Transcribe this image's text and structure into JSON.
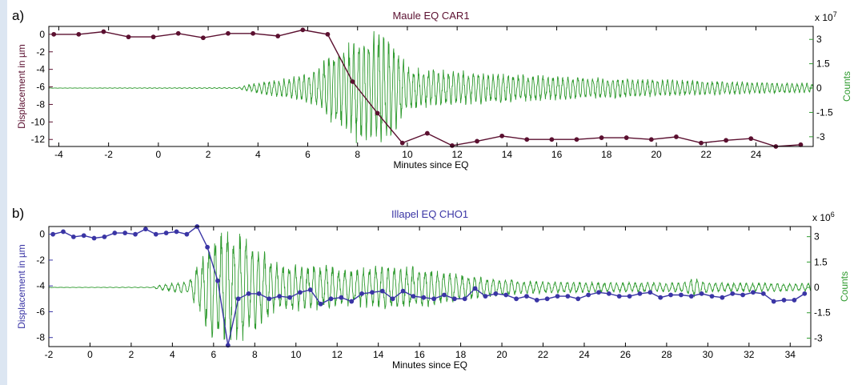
{
  "panels": [
    {
      "label": "a)",
      "chart_data": {
        "type": "line",
        "title": "Maule EQ CAR1",
        "xlabel": "Minutes since EQ",
        "ylabel": "Displacement in µm",
        "y2label": "Counts",
        "y2_exponent_label": "x 10",
        "y2_exponent": "7",
        "xlim": [
          -4.4,
          26.3
        ],
        "ylim": [
          -12.8,
          0.9
        ],
        "y2lim": [
          -3.6,
          3.8
        ],
        "xticks": [
          -4,
          -2,
          0,
          2,
          4,
          6,
          8,
          10,
          12,
          14,
          16,
          18,
          20,
          22,
          24
        ],
        "yticks": [
          0,
          -2,
          -4,
          -6,
          -8,
          -10,
          -12
        ],
        "y2ticks": [
          3,
          1.5,
          0,
          -1.5,
          -3
        ],
        "colors": {
          "displacement": "#5b1030",
          "seismogram": "#2e9a2e"
        },
        "series": [
          {
            "kind": "displacement",
            "x": [
              -4.2,
              -3.2,
              -2.2,
              -1.2,
              -0.2,
              0.8,
              1.8,
              2.8,
              3.8,
              4.8,
              5.8,
              6.8,
              7.8,
              8.8,
              9.8,
              10.8,
              11.8,
              12.8,
              13.8,
              14.8,
              15.8,
              16.8,
              17.8,
              18.8,
              19.8,
              20.8,
              21.8,
              22.8,
              23.8,
              24.8,
              25.8
            ],
            "y": [
              0.0,
              0.0,
              0.3,
              -0.3,
              -0.3,
              0.1,
              -0.4,
              0.1,
              0.1,
              -0.2,
              0.5,
              0.0,
              -5.4,
              -9.0,
              -12.4,
              -11.3,
              -12.7,
              -12.2,
              -11.6,
              -12.0,
              -12.0,
              -12.0,
              -11.8,
              -11.8,
              -12.0,
              -11.7,
              -12.4,
              -12.1,
              -11.9,
              -12.8,
              -12.6
            ]
          },
          {
            "kind": "seismogram",
            "envelope": {
              "t": [
                -4.4,
                3.2,
                3.8,
                5.0,
                6.4,
                6.9,
                7.6,
                8.1,
                8.7,
                9.3,
                10.0,
                11.0,
                12.5,
                14.5,
                17.0,
                20.0,
                22.0,
                24.0,
                26.3
              ],
              "amp": [
                0.01,
                0.03,
                0.3,
                0.6,
                1.1,
                2.3,
                2.8,
                3.6,
                3.6,
                3.3,
                1.4,
                1.15,
                1.05,
                0.85,
                0.7,
                0.55,
                0.45,
                0.35,
                0.3
              ]
            },
            "period_min": 0.2
          }
        ]
      }
    },
    {
      "label": "b)",
      "chart_data": {
        "type": "line",
        "title": "Illapel EQ CHO1",
        "xlabel": "Minutes since EQ",
        "ylabel": "Displacement in µm",
        "y2label": "Counts",
        "y2_exponent_label": "x 10",
        "y2_exponent": "6",
        "xlim": [
          -2,
          35
        ],
        "ylim": [
          -8.7,
          0.6
        ],
        "y2lim": [
          -3.5,
          3.6
        ],
        "xticks": [
          -2,
          0,
          2,
          4,
          6,
          8,
          10,
          12,
          14,
          16,
          18,
          20,
          22,
          24,
          26,
          28,
          30,
          32,
          34
        ],
        "yticks": [
          0,
          -2,
          -4,
          -6,
          -8
        ],
        "y2ticks": [
          3,
          1.5,
          0,
          -1.5,
          -3
        ],
        "colors": {
          "displacement": "#3a35a5",
          "seismogram": "#2e9a2e"
        },
        "series": [
          {
            "kind": "displacement",
            "x": [
              -1.8,
              -1.3,
              -0.8,
              -0.3,
              0.2,
              0.7,
              1.2,
              1.7,
              2.2,
              2.7,
              3.2,
              3.7,
              4.2,
              4.7,
              5.2,
              5.7,
              6.2,
              6.7,
              7.2,
              7.7,
              8.2,
              8.7,
              9.2,
              9.7,
              10.2,
              10.7,
              11.2,
              11.7,
              12.2,
              12.7,
              13.2,
              13.7,
              14.2,
              14.7,
              15.2,
              15.7,
              16.2,
              16.7,
              17.2,
              17.7,
              18.2,
              18.7,
              19.2,
              19.7,
              20.2,
              20.7,
              21.2,
              21.7,
              22.2,
              22.7,
              23.2,
              23.7,
              24.2,
              24.7,
              25.2,
              25.7,
              26.2,
              26.7,
              27.2,
              27.7,
              28.2,
              28.7,
              29.2,
              29.7,
              30.2,
              30.7,
              31.2,
              31.7,
              32.2,
              32.7,
              33.2,
              33.7,
              34.2,
              34.7
            ],
            "y": [
              0.0,
              0.2,
              -0.2,
              -0.1,
              -0.3,
              -0.2,
              0.1,
              0.1,
              0.0,
              0.4,
              0.0,
              0.1,
              0.2,
              0.0,
              0.6,
              -1.0,
              -3.6,
              -8.6,
              -5.0,
              -4.6,
              -4.6,
              -5.0,
              -4.8,
              -4.9,
              -4.5,
              -4.3,
              -5.4,
              -5.0,
              -4.9,
              -5.2,
              -4.6,
              -4.5,
              -4.4,
              -5.0,
              -4.4,
              -4.8,
              -4.9,
              -5.0,
              -4.7,
              -5.0,
              -5.0,
              -4.2,
              -4.8,
              -4.6,
              -4.7,
              -5.0,
              -4.8,
              -5.1,
              -5.0,
              -4.8,
              -4.8,
              -5.0,
              -4.7,
              -4.5,
              -4.6,
              -4.8,
              -4.8,
              -4.6,
              -4.5,
              -4.9,
              -4.7,
              -4.7,
              -4.8,
              -4.6,
              -4.8,
              -4.9,
              -4.6,
              -4.7,
              -4.5,
              -4.6,
              -5.2,
              -5.1,
              -5.1,
              -4.6
            ]
          },
          {
            "kind": "seismogram",
            "envelope": {
              "t": [
                -2.0,
                3.0,
                3.5,
                4.8,
                5.3,
                6.0,
                6.6,
                7.2,
                8.0,
                9.0,
                10.0,
                11.0,
                12.5,
                15.0,
                18.0,
                21.0,
                25.0,
                28.8,
                29.3,
                30.0,
                33.0,
                35.0
              ],
              "amp": [
                0.01,
                0.02,
                0.18,
                0.4,
                1.6,
                3.1,
                3.3,
                3.3,
                2.7,
                1.5,
                1.4,
                1.4,
                1.1,
                1.4,
                0.8,
                0.4,
                0.3,
                0.3,
                0.6,
                0.3,
                0.25,
                0.25
              ]
            },
            "period_min": 0.3
          }
        ]
      }
    }
  ]
}
